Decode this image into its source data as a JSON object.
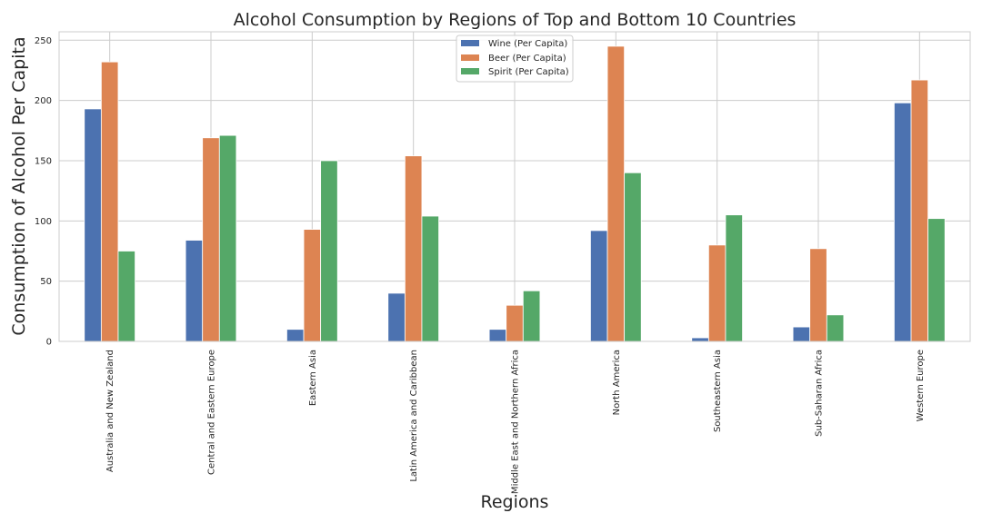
{
  "chart_data": {
    "type": "bar",
    "title": "Alcohol Consumption by Regions of Top and Bottom 10 Countries",
    "xlabel": "Regions",
    "ylabel": "Consumption of Alcohol Per Capita",
    "ylim": [
      0,
      257
    ],
    "yticks": [
      0,
      50,
      100,
      150,
      200,
      250
    ],
    "grid": true,
    "legend_position": "top-center",
    "categories": [
      "Australia and New Zealand",
      "Central and Eastern Europe",
      "Eastern Asia",
      "Latin America and Caribbean",
      "Middle East and Northern Africa",
      "North America",
      "Southeastern Asia",
      "Sub-Saharan Africa",
      "Western Europe"
    ],
    "series": [
      {
        "name": "Wine (Per Capita)",
        "color": "#4c72b0",
        "values": [
          193,
          84,
          10,
          40,
          10,
          92,
          3,
          12,
          198
        ]
      },
      {
        "name": "Beer (Per Capita)",
        "color": "#dd8452",
        "values": [
          232,
          169,
          93,
          154,
          30,
          245,
          80,
          77,
          217
        ]
      },
      {
        "name": "Spirit (Per Capita)",
        "color": "#55a868",
        "values": [
          75,
          171,
          150,
          104,
          42,
          140,
          105,
          22,
          102
        ]
      }
    ]
  }
}
